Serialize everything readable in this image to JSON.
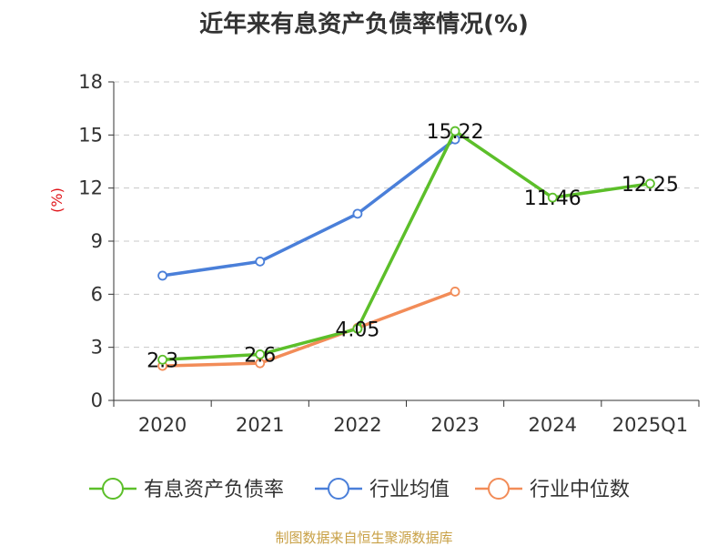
{
  "chart_data": {
    "type": "line",
    "title": "近年来有息资产负债率情况(%)",
    "ylabel": "(%)",
    "xlabel": "",
    "categories": [
      "2020",
      "2021",
      "2022",
      "2023",
      "2024",
      "2025Q1"
    ],
    "ylim": [
      0,
      18
    ],
    "yticks": [
      "0",
      "3",
      "6",
      "9",
      "12",
      "15",
      "18"
    ],
    "grid": "horizontal dashed",
    "legend_position": "bottom",
    "series": [
      {
        "name": "有息资产负债率",
        "color": "#5cbf2a",
        "values": [
          2.3,
          2.6,
          4.05,
          15.22,
          11.46,
          12.25
        ],
        "labels": [
          "2.3",
          "2.6",
          "4.05",
          "15.22",
          "11.46",
          "12.25"
        ]
      },
      {
        "name": "行业均值",
        "color": "#4a7fd9",
        "values": [
          7.05,
          7.85,
          10.55,
          14.75,
          null,
          null
        ]
      },
      {
        "name": "行业中位数",
        "color": "#f28c58",
        "values": [
          1.95,
          2.1,
          4.1,
          6.15,
          null,
          null
        ]
      }
    ],
    "source": "制图数据来自恒生聚源数据库"
  }
}
